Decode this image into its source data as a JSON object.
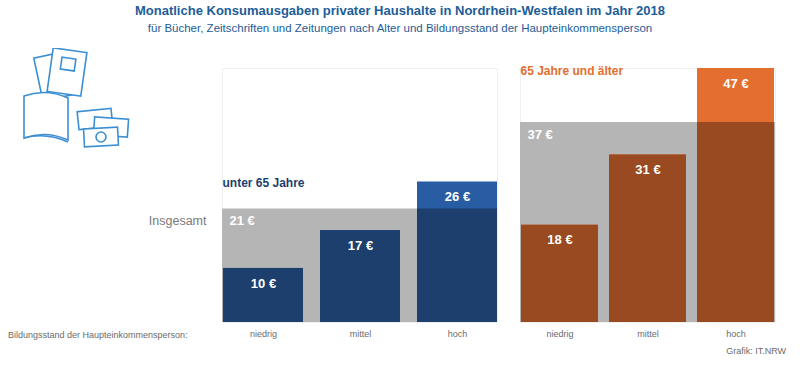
{
  "title": "Monatliche Konsumausgaben privater Haushalte in Nordrhein-Westfalen im Jahr 2018",
  "subtitle": "für Bücher, Zeitschriften und Zeitungen nach Alter und Bildungsstand der Haupteinkommensperson",
  "x_label": "Bildungsstand der Haupteinkommensperson:",
  "caption": "Grafik: IT.NRW",
  "chart_data": [
    {
      "type": "bar",
      "title": "unter 65 Jahre",
      "categories": [
        "niedrig",
        "mittel",
        "hoch"
      ],
      "values": [
        10,
        17,
        26
      ],
      "value_labels": [
        "10 €",
        "17 €",
        "26 €"
      ],
      "total": {
        "name": "Insgesamt",
        "value": 21,
        "label": "21 €",
        "color": "#b5b5b5"
      },
      "color": "#1c3f6e",
      "ylim": [
        0,
        47
      ],
      "yticks": [],
      "data_labels": true,
      "tick_labels": "x",
      "grid": false
    },
    {
      "type": "bar",
      "title": "65 Jahre und älter",
      "categories": [
        "niedrig",
        "mittel",
        "hoch"
      ],
      "values": [
        18,
        31,
        47
      ],
      "value_labels": [
        "18 €",
        "31 €",
        "47 €"
      ],
      "total": {
        "value": 37,
        "label": "37 €",
        "color": "#b5b5b5"
      },
      "color": "#9a4a20",
      "ylim": [
        0,
        47
      ],
      "yticks": [],
      "data_labels": true,
      "tick_labels": "x",
      "grid": false
    }
  ]
}
